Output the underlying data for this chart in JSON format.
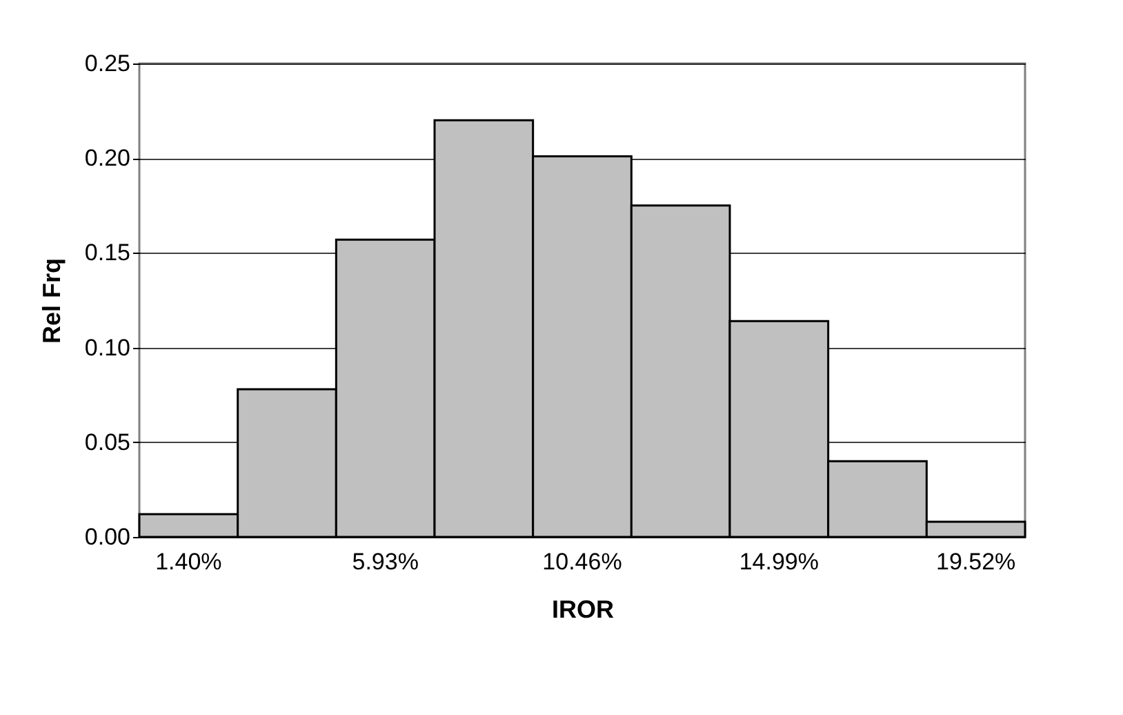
{
  "chart_data": {
    "type": "bar",
    "xlabel": "IROR",
    "ylabel": "Rel Frq",
    "categories": [
      "1.40%",
      null,
      "5.93%",
      null,
      "10.46%",
      null,
      "14.99%",
      null,
      "19.52%"
    ],
    "values": [
      0.012,
      0.078,
      0.157,
      0.22,
      0.201,
      0.175,
      0.114,
      0.04,
      0.008
    ],
    "color": "#c0c0c0",
    "ylim": [
      0,
      0.25
    ],
    "yticks": [
      {
        "value": 0,
        "label": "0.00"
      },
      {
        "value": 0.05,
        "label": "0.05"
      },
      {
        "value": 0.1,
        "label": "0.10"
      },
      {
        "value": 0.15,
        "label": "0.15"
      },
      {
        "value": 0.2,
        "label": "0.20"
      },
      {
        "value": 0.25,
        "label": "0.25"
      }
    ],
    "grid": "y"
  }
}
